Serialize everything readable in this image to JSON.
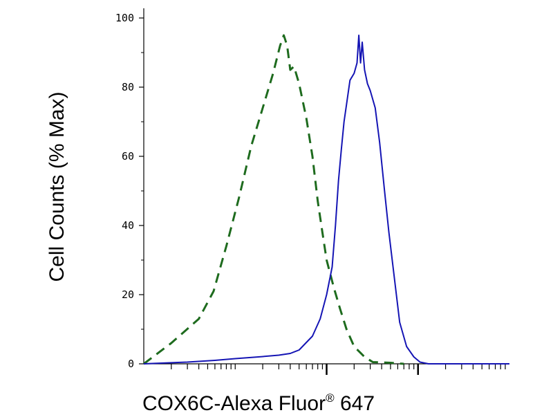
{
  "chart_data": {
    "type": "line",
    "title": "",
    "xlabel": "COX6C-Alexa Fluor",
    "xlabel_sup": "®",
    "xlabel_suffix": " 647",
    "ylabel": "Cell Counts (% Max)",
    "x_scale": "log",
    "xlim": [
      10,
      100000
    ],
    "ylim": [
      0,
      100
    ],
    "y_ticks": [
      {
        "value": 0,
        "label": "0"
      },
      {
        "value": 20,
        "label": "20"
      },
      {
        "value": 40,
        "label": "40"
      },
      {
        "value": 60,
        "label": "60"
      },
      {
        "value": 80,
        "label": "80"
      },
      {
        "value": 100,
        "label": "100"
      }
    ],
    "x_major_ticks": [
      1000,
      10000
    ],
    "x_minor_ticks": [
      20,
      30,
      40,
      50,
      60,
      70,
      80,
      90,
      100,
      200,
      300,
      400,
      500,
      600,
      700,
      800,
      900,
      2000,
      3000,
      4000,
      5000,
      6000,
      7000,
      8000,
      9000,
      20000,
      30000,
      40000,
      50000,
      60000,
      70000,
      80000,
      90000
    ],
    "grid": false,
    "legend": "none",
    "series": [
      {
        "style": "dashed",
        "color": "#1e6b1e",
        "points": [
          [
            10,
            0
          ],
          [
            20,
            6
          ],
          [
            40,
            13
          ],
          [
            58,
            21
          ],
          [
            80,
            34
          ],
          [
            110,
            48
          ],
          [
            150,
            63
          ],
          [
            200,
            74
          ],
          [
            260,
            84
          ],
          [
            310,
            92
          ],
          [
            340,
            95
          ],
          [
            370,
            92
          ],
          [
            400,
            85
          ],
          [
            440,
            86
          ],
          [
            500,
            81
          ],
          [
            600,
            71
          ],
          [
            700,
            60
          ],
          [
            800,
            47
          ],
          [
            900,
            38
          ],
          [
            1000,
            30
          ],
          [
            1200,
            22
          ],
          [
            1400,
            16
          ],
          [
            1650,
            10
          ],
          [
            2000,
            5
          ],
          [
            2600,
            2
          ],
          [
            3200,
            0.5
          ],
          [
            5000,
            0.3
          ],
          [
            7000,
            0
          ]
        ]
      },
      {
        "style": "solid",
        "color": "#1414b4",
        "points": [
          [
            10,
            0
          ],
          [
            30,
            0.5
          ],
          [
            60,
            1
          ],
          [
            100,
            1.5
          ],
          [
            180,
            2
          ],
          [
            300,
            2.5
          ],
          [
            400,
            3
          ],
          [
            500,
            4
          ],
          [
            700,
            8
          ],
          [
            850,
            13
          ],
          [
            1000,
            20
          ],
          [
            1150,
            28
          ],
          [
            1250,
            40
          ],
          [
            1350,
            53
          ],
          [
            1450,
            62
          ],
          [
            1550,
            70
          ],
          [
            1650,
            75
          ],
          [
            1800,
            82
          ],
          [
            2000,
            84
          ],
          [
            2150,
            87
          ],
          [
            2250,
            95
          ],
          [
            2350,
            87
          ],
          [
            2450,
            93
          ],
          [
            2600,
            85
          ],
          [
            2800,
            81
          ],
          [
            3000,
            79
          ],
          [
            3400,
            74
          ],
          [
            3800,
            64
          ],
          [
            4300,
            50
          ],
          [
            4800,
            38
          ],
          [
            5500,
            25
          ],
          [
            6300,
            12
          ],
          [
            7500,
            5
          ],
          [
            9000,
            2
          ],
          [
            10500,
            0.5
          ],
          [
            13000,
            0
          ],
          [
            100000,
            0
          ]
        ]
      }
    ]
  }
}
